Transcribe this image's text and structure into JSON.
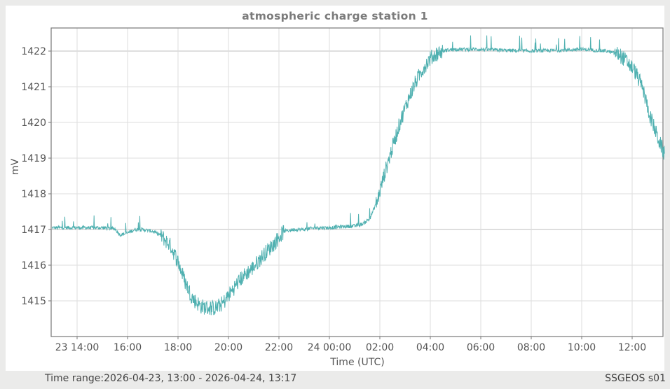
{
  "title": "atmospheric charge station 1",
  "footer": {
    "time_range": "Time range:2026-04-23, 13:00 - 2026-04-24, 13:17",
    "station": "SSGEOS s01"
  },
  "colors": {
    "line": "#4fb0b0",
    "grid": "#dedede",
    "major_grid": "#bdbdbd",
    "axis": "#777777",
    "background": "#ebebea",
    "panel": "#ffffff"
  },
  "chart_data": {
    "type": "line",
    "title": "atmospheric charge station 1",
    "xlabel": "Time (UTC)",
    "ylabel": "mV",
    "xlim_hours": [
      0,
      24.28
    ],
    "x_origin": "2026-04-23 13:00",
    "ylim": [
      1414.05,
      1422.65
    ],
    "y_ticks": [
      1415,
      1416,
      1417,
      1418,
      1419,
      1420,
      1421,
      1422
    ],
    "x_tick_labels": [
      "23 14:00",
      "16:00",
      "18:00",
      "20:00",
      "22:00",
      "24 00:00",
      "02:00",
      "04:00",
      "06:00",
      "08:00",
      "10:00",
      "12:00"
    ],
    "x_tick_hours": [
      1,
      3,
      5,
      7,
      9,
      11,
      13,
      15,
      17,
      19,
      21,
      23
    ],
    "grid": true,
    "legend": "none",
    "series": [
      {
        "name": "station 1",
        "x_hours": [
          0,
          0.5,
          1,
          1.5,
          2,
          2.5,
          2.7,
          3.0,
          3.3,
          3.6,
          4.0,
          4.3,
          4.7,
          5.0,
          5.3,
          5.6,
          5.9,
          6.2,
          6.5,
          6.8,
          7.0,
          7.3,
          7.6,
          8.0,
          8.4,
          8.8,
          9.2,
          9.6,
          10,
          10.5,
          11,
          11.5,
          12,
          12.3,
          12.6,
          12.9,
          13.2,
          13.5,
          13.8,
          14.1,
          14.4,
          14.7,
          15.0,
          15.3,
          15.6,
          16,
          17,
          18,
          19,
          20,
          21,
          22,
          22.5,
          22.8,
          23.1,
          23.4,
          23.7,
          24.0,
          24.28
        ],
        "values": [
          1417.05,
          1417.05,
          1417.05,
          1417.05,
          1417.05,
          1417.02,
          1416.85,
          1416.9,
          1417.0,
          1417.0,
          1416.95,
          1416.85,
          1416.55,
          1416.1,
          1415.5,
          1415.05,
          1414.85,
          1414.8,
          1414.8,
          1414.95,
          1415.15,
          1415.45,
          1415.7,
          1415.95,
          1416.3,
          1416.6,
          1416.95,
          1417.0,
          1417.0,
          1417.05,
          1417.05,
          1417.08,
          1417.1,
          1417.15,
          1417.3,
          1417.8,
          1418.6,
          1419.3,
          1420.0,
          1420.6,
          1421.1,
          1421.5,
          1421.8,
          1421.95,
          1422.02,
          1422.05,
          1422.05,
          1422.02,
          1422.0,
          1422.02,
          1422.05,
          1422.0,
          1421.9,
          1421.7,
          1421.45,
          1421.0,
          1420.2,
          1419.6,
          1419.1
        ]
      }
    ]
  }
}
